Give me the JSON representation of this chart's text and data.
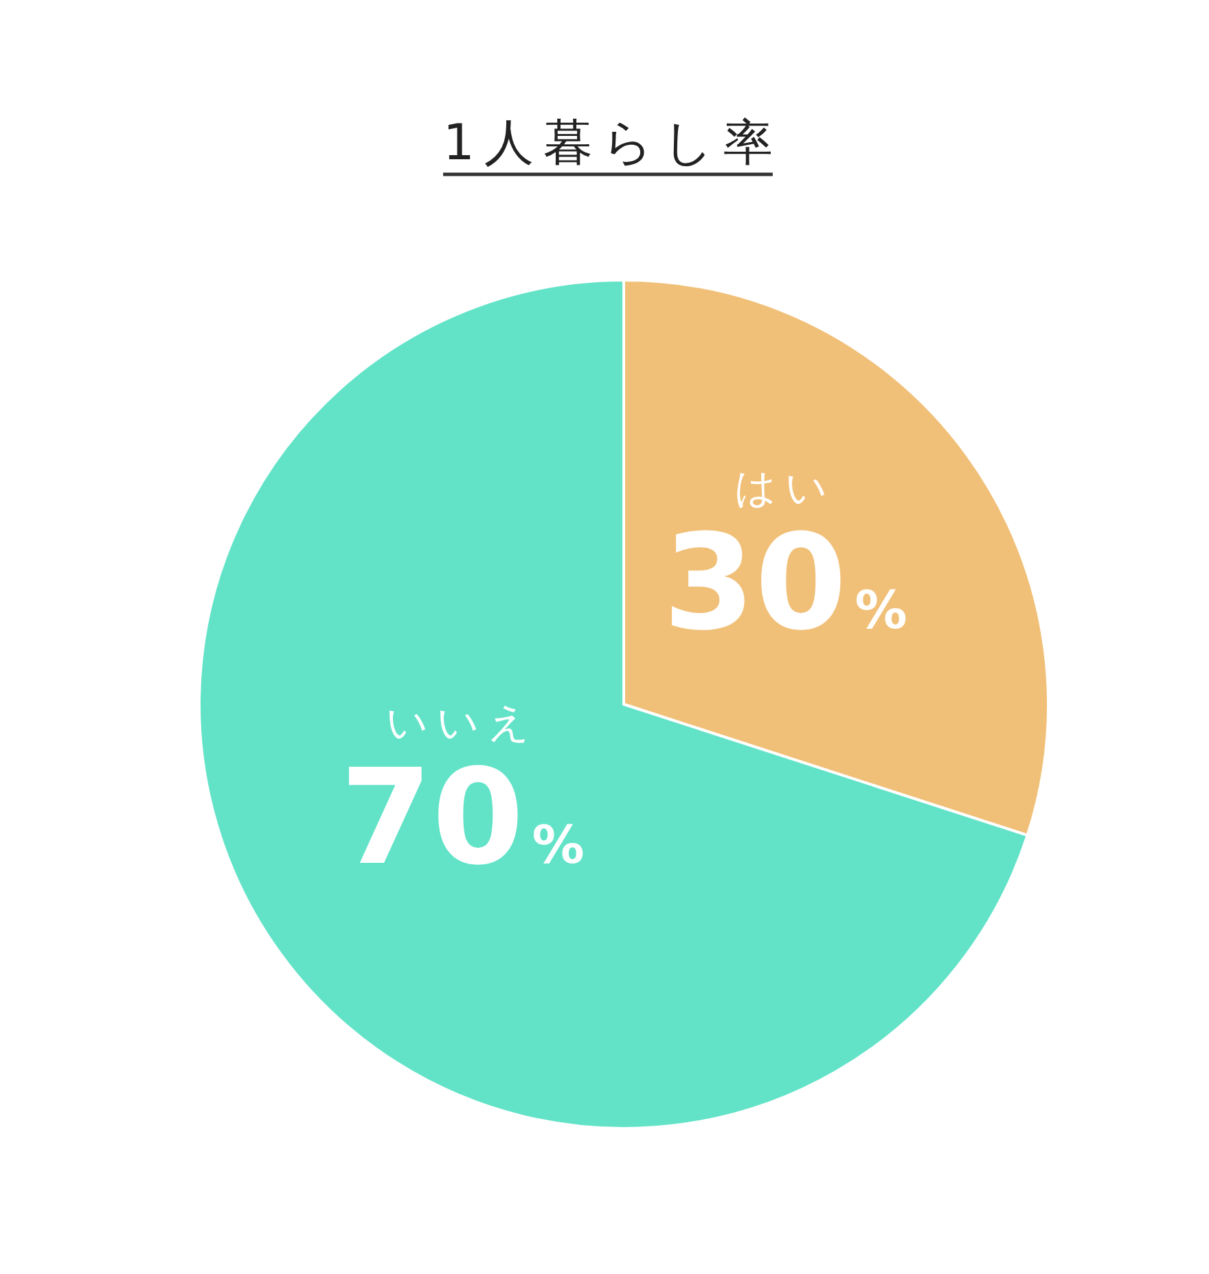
{
  "chart_data": {
    "type": "pie",
    "title": "1人暮らし率",
    "categories": [
      "はい",
      "いいえ"
    ],
    "values": [
      30,
      70
    ],
    "colors": [
      "#f1c078",
      "#62e3c8"
    ],
    "value_labels": [
      "30%",
      "70%"
    ]
  }
}
